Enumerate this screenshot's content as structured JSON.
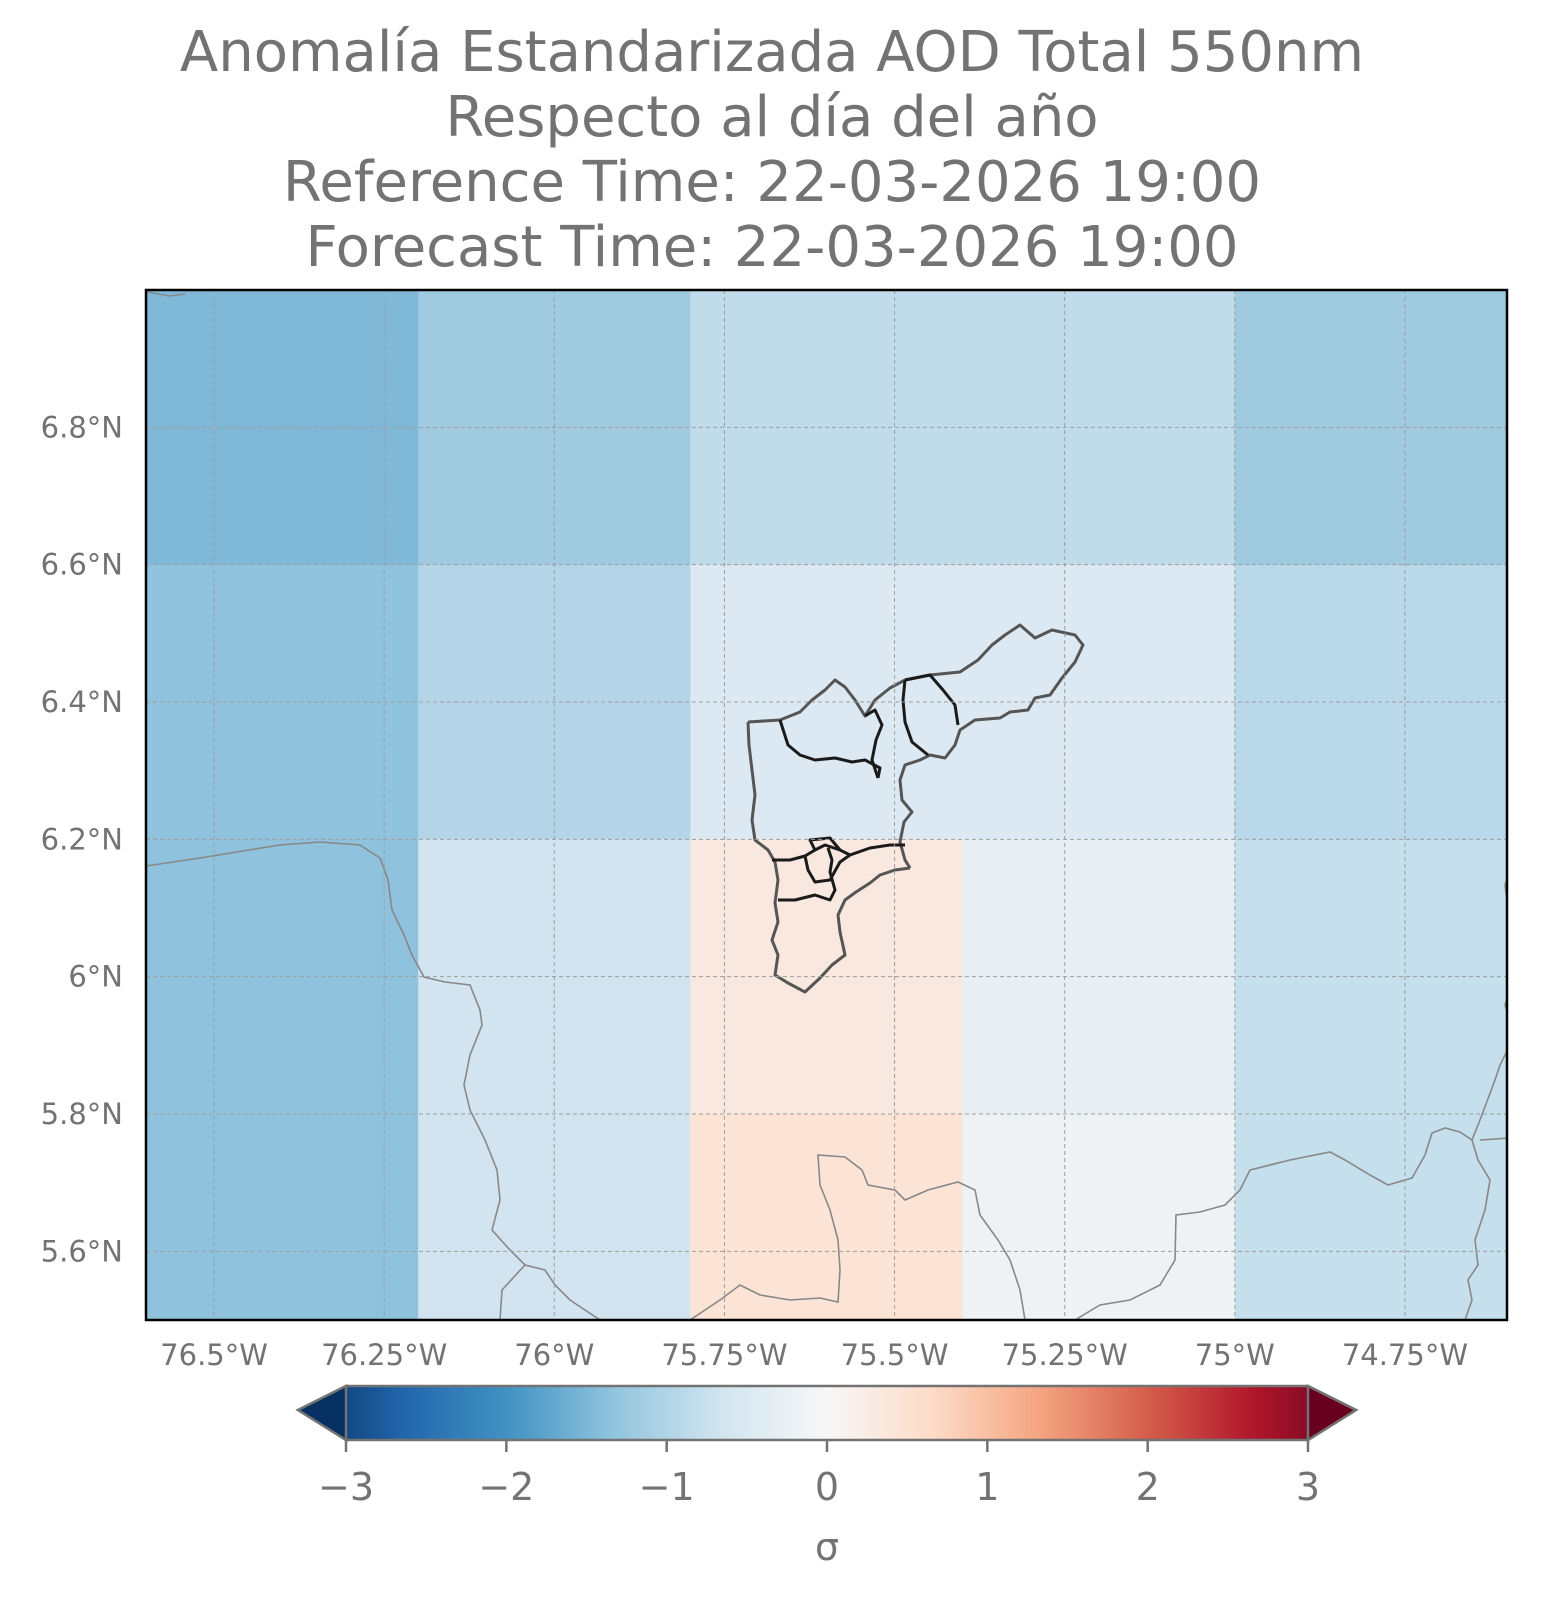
{
  "title": {
    "line1": "Anomalía Estandarizada AOD Total 550nm",
    "line2": "Respecto al día del año",
    "line3": "Reference Time: 22-03-2026 19:00",
    "line4": "Forecast Time: 22-03-2026 19:00"
  },
  "map": {
    "lon_range": [
      -76.6,
      -74.6
    ],
    "lat_range": [
      5.5,
      7.0
    ],
    "lon_ticks": [
      {
        "value": -76.5,
        "label": "76.5°W"
      },
      {
        "value": -76.25,
        "label": "76.25°W"
      },
      {
        "value": -76.0,
        "label": "76°W"
      },
      {
        "value": -75.75,
        "label": "75.75°W"
      },
      {
        "value": -75.5,
        "label": "75.5°W"
      },
      {
        "value": -75.25,
        "label": "75.25°W"
      },
      {
        "value": -75.0,
        "label": "75°W"
      },
      {
        "value": -74.75,
        "label": "74.75°W"
      }
    ],
    "lat_ticks": [
      {
        "value": 5.6,
        "label": "5.6°N"
      },
      {
        "value": 5.8,
        "label": "5.8°N"
      },
      {
        "value": 6.0,
        "label": "6°N"
      },
      {
        "value": 6.2,
        "label": "6.2°N"
      },
      {
        "value": 6.4,
        "label": "6.4°N"
      },
      {
        "value": 6.6,
        "label": "6.6°N"
      },
      {
        "value": 6.8,
        "label": "6.8°N"
      }
    ],
    "grid": true,
    "cells_lon_edges": [
      -76.6,
      -76.2,
      -75.8,
      -75.4,
      -75.0,
      -74.6
    ],
    "cells_lat_edges": [
      7.0,
      6.6,
      6.2,
      5.5
    ],
    "cell_colors": [
      [
        "#80b8d7",
        "#9fcae0",
        "#c0dbe9",
        "#c0dbe9",
        "#9fcae0"
      ],
      [
        "#90c3dd",
        "#b4d5e7",
        "#dce9f2",
        "#dce9f2",
        "#b9d8e9"
      ],
      [
        "#8ec2dd",
        "#d1e4ef",
        "#f9e8df",
        "#e7eff5",
        "#c5dfec"
      ]
    ],
    "overlay_cells": [
      {
        "lon": [
          -75.8,
          -75.4
        ],
        "lat": [
          5.5,
          5.8
        ],
        "color": "#fbe3d6"
      },
      {
        "lon": [
          -75.4,
          -75.0
        ],
        "lat": [
          5.5,
          5.8
        ],
        "color": "#eef2f5"
      }
    ]
  },
  "colorbar": {
    "min": -3,
    "max": 3,
    "ticks": [
      {
        "value": -3,
        "label": "−3"
      },
      {
        "value": -2,
        "label": "−2"
      },
      {
        "value": -1,
        "label": "−1"
      },
      {
        "value": 0,
        "label": "0"
      },
      {
        "value": 1,
        "label": "1"
      },
      {
        "value": 2,
        "label": "2"
      },
      {
        "value": 3,
        "label": "3"
      }
    ],
    "label": "σ",
    "colormap": "RdBu_r",
    "extend": "both"
  },
  "colors": {
    "text": "#737373",
    "grid": "#9e9e9e",
    "coast": "#888888",
    "boundary_dark": "#1a1a1a",
    "boundary_grey": "#555555"
  }
}
